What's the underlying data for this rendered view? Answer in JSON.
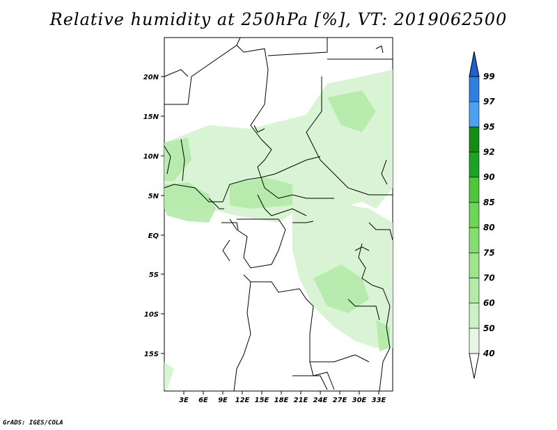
{
  "title": "Relative humidity at 250hPa [%], VT: 2019062500",
  "credit": "GrADS: IGES/COLA",
  "map": {
    "lon_labels": [
      "3E",
      "6E",
      "9E",
      "12E",
      "15E",
      "18E",
      "21E",
      "24E",
      "27E",
      "30E",
      "33E"
    ],
    "lat_labels": [
      "20N",
      "15N",
      "10N",
      "5N",
      "EQ",
      "5S",
      "10S",
      "15S"
    ],
    "lon_range": [
      0,
      35
    ],
    "lat_range": [
      -20,
      25
    ]
  },
  "colorbar": {
    "levels": [
      "40",
      "50",
      "60",
      "70",
      "75",
      "80",
      "85",
      "90",
      "92",
      "95",
      "97",
      "99"
    ],
    "colors": [
      "#ffffff",
      "#e6f7e3",
      "#cdf0c7",
      "#b4ebaa",
      "#9ee58d",
      "#86dd72",
      "#6fd557",
      "#4fc43d",
      "#1ea226",
      "#138c18",
      "#4aa3f0",
      "#2e7fe0",
      "#1f5fd0"
    ]
  }
}
